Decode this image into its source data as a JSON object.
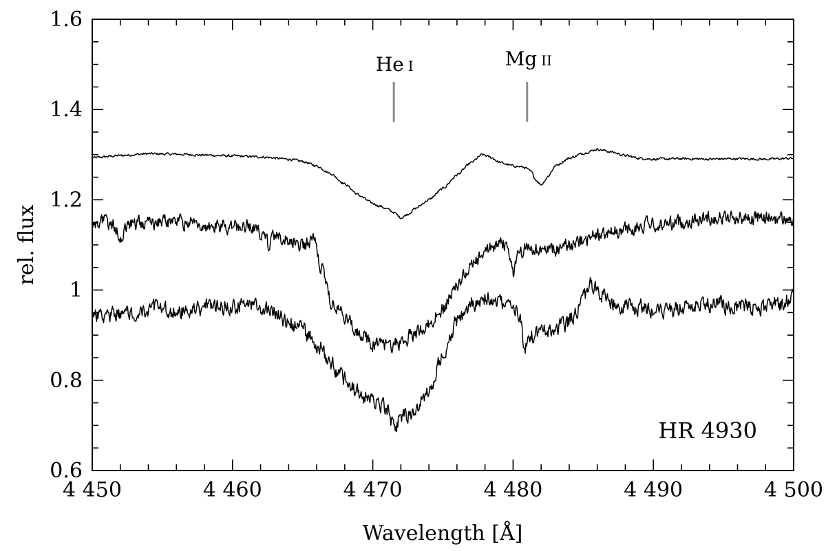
{
  "chart_data": {
    "type": "line",
    "title": "",
    "xlabel": "Wavelength [Å]",
    "ylabel": "rel. flux",
    "xlim": [
      4450,
      4500
    ],
    "ylim": [
      0.6,
      1.6
    ],
    "grid": false,
    "xticks": [
      4450,
      4460,
      4470,
      4480,
      4490,
      4500
    ],
    "xtick_labels": [
      "4 450",
      "4 460",
      "4 470",
      "4 480",
      "4 490",
      "4 500"
    ],
    "yticks": [
      0.6,
      0.8,
      1.0,
      1.2,
      1.4,
      1.6
    ],
    "ytick_labels": [
      "0.6",
      "0.8",
      "1",
      "1.2",
      "1.4",
      "1.6"
    ],
    "annotations": {
      "object": "HR 4930",
      "lines": [
        {
          "element": "He",
          "ion": "I",
          "wavelength": 4471.5
        },
        {
          "element": "Mg",
          "ion": "II",
          "wavelength": 4481.0
        }
      ]
    },
    "series": [
      {
        "x": [
          4450,
          4452,
          4454,
          4456,
          4458,
          4460,
          4462,
          4464,
          4465,
          4466,
          4467,
          4468,
          4469,
          4470,
          4470.5,
          4471,
          4471.5,
          4472,
          4472.5,
          4473,
          4474,
          4475,
          4476,
          4477,
          4477.8,
          4478.5,
          4479,
          4480,
          4480.8,
          4481.3,
          4481.6,
          4482,
          4482.5,
          4483,
          4484,
          4485,
          4486,
          4487,
          4488,
          4489,
          4490,
          4492,
          4494,
          4496,
          4498,
          4500
        ],
        "values": [
          1.293,
          1.298,
          1.302,
          1.301,
          1.299,
          1.297,
          1.295,
          1.29,
          1.285,
          1.275,
          1.258,
          1.235,
          1.21,
          1.192,
          1.186,
          1.18,
          1.172,
          1.16,
          1.168,
          1.18,
          1.2,
          1.225,
          1.255,
          1.282,
          1.3,
          1.293,
          1.283,
          1.275,
          1.272,
          1.262,
          1.245,
          1.233,
          1.252,
          1.275,
          1.292,
          1.303,
          1.312,
          1.306,
          1.298,
          1.292,
          1.29,
          1.291,
          1.29,
          1.291,
          1.29,
          1.292
        ]
      },
      {
        "x": [
          4450,
          4451,
          4451.8,
          4452,
          4452.3,
          4453,
          4455,
          4457,
          4459,
          4461,
          4462,
          4462.5,
          4463,
          4464,
          4465,
          4465.8,
          4466.3,
          4466.8,
          4467,
          4467.5,
          4468,
          4469,
          4470,
          4471,
          4472,
          4473,
          4474,
          4475,
          4476,
          4477,
          4478,
          4479,
          4479.7,
          4480,
          4480.3,
          4481,
          4482,
          4483,
          4484,
          4486,
          4488,
          4490,
          4492,
          4494,
          4496,
          4498,
          4500
        ],
        "values": [
          1.15,
          1.15,
          1.14,
          1.1,
          1.14,
          1.15,
          1.15,
          1.15,
          1.14,
          1.14,
          1.13,
          1.1,
          1.12,
          1.11,
          1.1,
          1.11,
          1.05,
          1.0,
          0.97,
          0.96,
          0.94,
          0.91,
          0.88,
          0.875,
          0.885,
          0.905,
          0.925,
          0.96,
          1.01,
          1.05,
          1.08,
          1.11,
          1.09,
          1.035,
          1.075,
          1.1,
          1.085,
          1.09,
          1.1,
          1.12,
          1.135,
          1.145,
          1.15,
          1.16,
          1.16,
          1.16,
          1.155
        ]
      },
      {
        "x": [
          4450,
          4452,
          4454,
          4456,
          4458,
          4460,
          4461,
          4462,
          4463,
          4464,
          4465,
          4466,
          4467,
          4468,
          4469,
          4470,
          4471,
          4471.5,
          4472,
          4473,
          4474,
          4475,
          4476,
          4477,
          4478,
          4479,
          4480,
          4480.5,
          4480.8,
          4481.2,
          4482,
          4483,
          4484,
          4485,
          4485.5,
          4486,
          4487,
          4488,
          4490,
          4492,
          4494,
          4496,
          4498,
          4500
        ],
        "values": [
          0.94,
          0.95,
          0.96,
          0.95,
          0.96,
          0.96,
          0.97,
          0.96,
          0.95,
          0.93,
          0.91,
          0.88,
          0.84,
          0.8,
          0.77,
          0.755,
          0.74,
          0.69,
          0.72,
          0.73,
          0.78,
          0.86,
          0.93,
          0.965,
          0.985,
          0.97,
          0.96,
          0.94,
          0.86,
          0.9,
          0.905,
          0.91,
          0.93,
          0.98,
          1.01,
          1.0,
          0.97,
          0.96,
          0.96,
          0.96,
          0.97,
          0.965,
          0.96,
          0.98
        ]
      }
    ]
  }
}
